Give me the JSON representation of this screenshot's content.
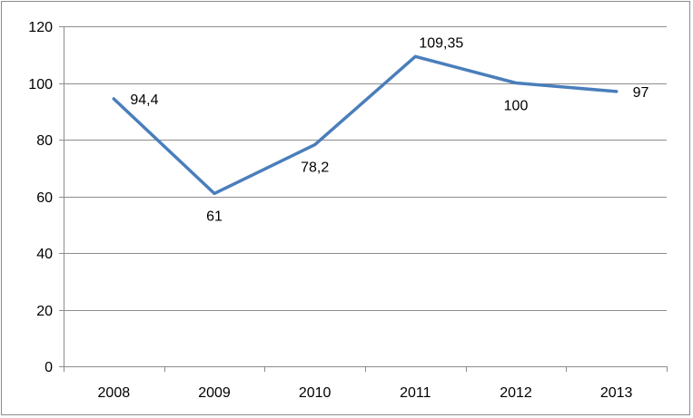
{
  "chart_data": {
    "type": "line",
    "title": "",
    "xlabel": "",
    "ylabel": "",
    "categories": [
      "2008",
      "2009",
      "2010",
      "2011",
      "2012",
      "2013"
    ],
    "series": [
      {
        "values": [
          94.4,
          61,
          78.2,
          109.35,
          100,
          97
        ],
        "data_labels": [
          "94,4",
          "61",
          "78,2",
          "109,35",
          "100",
          "97"
        ],
        "color": "#4a7ebb"
      }
    ],
    "ylim": [
      0,
      120
    ],
    "yticks": [
      0,
      20,
      40,
      60,
      80,
      100,
      120
    ],
    "grid": true,
    "legend": "none"
  }
}
